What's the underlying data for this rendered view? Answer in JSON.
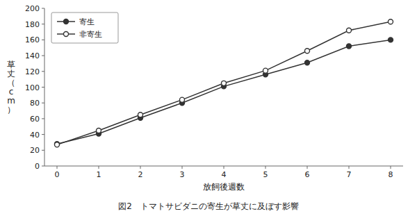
{
  "chart_data": {
    "type": "line",
    "title": "図2　トマトサビダニの寄生が草丈に及ぼす影響",
    "xlabel": "放飼後週数",
    "ylabel": "草丈（cm）",
    "x": [
      0,
      1,
      2,
      3,
      4,
      5,
      6,
      7,
      8
    ],
    "series": [
      {
        "name": "寄生",
        "color": "#333333",
        "marker": "circle",
        "values": [
          28,
          41,
          61,
          80,
          101,
          116,
          131,
          152,
          160
        ]
      },
      {
        "name": "非寄生",
        "color": "#333333",
        "marker": "circle-open",
        "values": [
          27,
          45,
          65,
          84,
          105,
          121,
          146,
          172,
          183
        ]
      }
    ],
    "xlim": [
      -0.3,
      8.3
    ],
    "ylim": [
      0,
      200
    ],
    "xticks": [
      0,
      1,
      2,
      3,
      4,
      5,
      6,
      7,
      8
    ],
    "yticks": [
      0,
      20,
      40,
      60,
      80,
      100,
      120,
      140,
      160,
      180,
      200
    ],
    "legend": "upper left",
    "grid": false
  }
}
